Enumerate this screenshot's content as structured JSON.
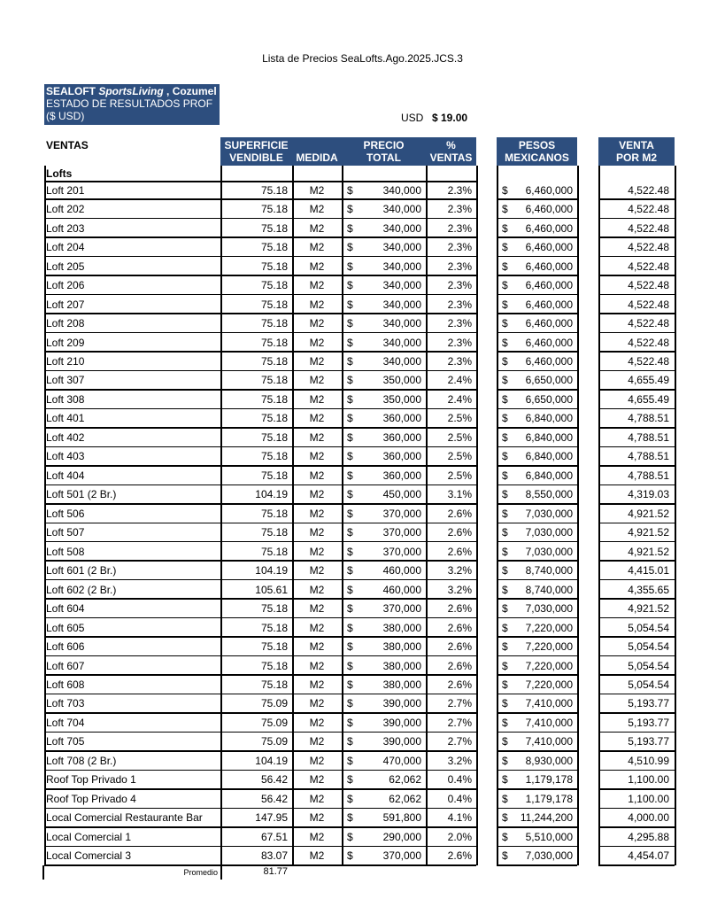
{
  "header": {
    "title": "Lista de Precios SeaLofts.Ago.2025.JCS.3",
    "company": [
      "SEALOFT ",
      "SportsLiving",
      " , Cozumel"
    ],
    "subtitle": "ESTADO DE RESULTADOS PROF",
    "currency_note": "($ USD)",
    "fx_label": "USD",
    "fx_value": "$ 19.00"
  },
  "table": {
    "section": "VENTAS",
    "currency": "$",
    "columns": [
      [
        "SUPERFICIE",
        "VENDIBLE"
      ],
      [
        "",
        "MEDIDA"
      ],
      [
        "PRECIO",
        "TOTAL"
      ],
      [
        "%",
        "VENTAS"
      ],
      [
        "PESOS",
        "MEXICANOS"
      ],
      [
        "VENTA",
        "POR M2"
      ]
    ],
    "group": "Lofts",
    "rows": [
      [
        "Loft 201",
        "75.18",
        "M2",
        "340,000",
        "2.3%",
        "6,460,000",
        "4,522.48"
      ],
      [
        "Loft 202",
        "75.18",
        "M2",
        "340,000",
        "2.3%",
        "6,460,000",
        "4,522.48"
      ],
      [
        "Loft 203",
        "75.18",
        "M2",
        "340,000",
        "2.3%",
        "6,460,000",
        "4,522.48"
      ],
      [
        "Loft 204",
        "75.18",
        "M2",
        "340,000",
        "2.3%",
        "6,460,000",
        "4,522.48"
      ],
      [
        "Loft 205",
        "75.18",
        "M2",
        "340,000",
        "2.3%",
        "6,460,000",
        "4,522.48"
      ],
      [
        "Loft 206",
        "75.18",
        "M2",
        "340,000",
        "2.3%",
        "6,460,000",
        "4,522.48"
      ],
      [
        "Loft 207",
        "75.18",
        "M2",
        "340,000",
        "2.3%",
        "6,460,000",
        "4,522.48"
      ],
      [
        "Loft 208",
        "75.18",
        "M2",
        "340,000",
        "2.3%",
        "6,460,000",
        "4,522.48"
      ],
      [
        "Loft 209",
        "75.18",
        "M2",
        "340,000",
        "2.3%",
        "6,460,000",
        "4,522.48"
      ],
      [
        "Loft 210",
        "75.18",
        "M2",
        "340,000",
        "2.3%",
        "6,460,000",
        "4,522.48"
      ],
      [
        "Loft 307",
        "75.18",
        "M2",
        "350,000",
        "2.4%",
        "6,650,000",
        "4,655.49"
      ],
      [
        "Loft 308",
        "75.18",
        "M2",
        "350,000",
        "2.4%",
        "6,650,000",
        "4,655.49"
      ],
      [
        "Loft 401",
        "75.18",
        "M2",
        "360,000",
        "2.5%",
        "6,840,000",
        "4,788.51"
      ],
      [
        "Loft 402",
        "75.18",
        "M2",
        "360,000",
        "2.5%",
        "6,840,000",
        "4,788.51"
      ],
      [
        "Loft 403",
        "75.18",
        "M2",
        "360,000",
        "2.5%",
        "6,840,000",
        "4,788.51"
      ],
      [
        "Loft 404",
        "75.18",
        "M2",
        "360,000",
        "2.5%",
        "6,840,000",
        "4,788.51"
      ],
      [
        "Loft 501 (2 Br.)",
        "104.19",
        "M2",
        "450,000",
        "3.1%",
        "8,550,000",
        "4,319.03"
      ],
      [
        "Loft 506",
        "75.18",
        "M2",
        "370,000",
        "2.6%",
        "7,030,000",
        "4,921.52"
      ],
      [
        "Loft 507",
        "75.18",
        "M2",
        "370,000",
        "2.6%",
        "7,030,000",
        "4,921.52"
      ],
      [
        "Loft 508",
        "75.18",
        "M2",
        "370,000",
        "2.6%",
        "7,030,000",
        "4,921.52"
      ],
      [
        "Loft 601 (2 Br.)",
        "104.19",
        "M2",
        "460,000",
        "3.2%",
        "8,740,000",
        "4,415.01"
      ],
      [
        "Loft 602 (2 Br.)",
        "105.61",
        "M2",
        "460,000",
        "3.2%",
        "8,740,000",
        "4,355.65"
      ],
      [
        "Loft 604",
        "75.18",
        "M2",
        "370,000",
        "2.6%",
        "7,030,000",
        "4,921.52"
      ],
      [
        "Loft 605",
        "75.18",
        "M2",
        "380,000",
        "2.6%",
        "7,220,000",
        "5,054.54"
      ],
      [
        "Loft 606",
        "75.18",
        "M2",
        "380,000",
        "2.6%",
        "7,220,000",
        "5,054.54"
      ],
      [
        "Loft 607",
        "75.18",
        "M2",
        "380,000",
        "2.6%",
        "7,220,000",
        "5,054.54"
      ],
      [
        "Loft 608",
        "75.18",
        "M2",
        "380,000",
        "2.6%",
        "7,220,000",
        "5,054.54"
      ],
      [
        "Loft 703",
        "75.09",
        "M2",
        "390,000",
        "2.7%",
        "7,410,000",
        "5,193.77"
      ],
      [
        "Loft 704",
        "75.09",
        "M2",
        "390,000",
        "2.7%",
        "7,410,000",
        "5,193.77"
      ],
      [
        "Loft 705",
        "75.09",
        "M2",
        "390,000",
        "2.7%",
        "7,410,000",
        "5,193.77"
      ],
      [
        "Loft 708 (2 Br.)",
        "104.19",
        "M2",
        "470,000",
        "3.2%",
        "8,930,000",
        "4,510.99"
      ],
      [
        "Roof Top Privado 1",
        "56.42",
        "M2",
        "62,062",
        "0.4%",
        "1,179,178",
        "1,100.00"
      ],
      [
        "Roof Top Privado 4",
        "56.42",
        "M2",
        "62,062",
        "0.4%",
        "1,179,178",
        "1,100.00"
      ],
      [
        "Local Comercial Restaurante Bar",
        "147.95",
        "M2",
        "591,800",
        "4.1%",
        "11,244,200",
        "4,000.00"
      ],
      [
        "Local Comercial 1",
        "67.51",
        "M2",
        "290,000",
        "2.0%",
        "5,510,000",
        "4,295.88"
      ],
      [
        "Local Comercial 3",
        "83.07",
        "M2",
        "370,000",
        "2.6%",
        "7,030,000",
        "4,454.07"
      ]
    ],
    "footer": {
      "label": "Promedio",
      "value": "81.77"
    }
  }
}
